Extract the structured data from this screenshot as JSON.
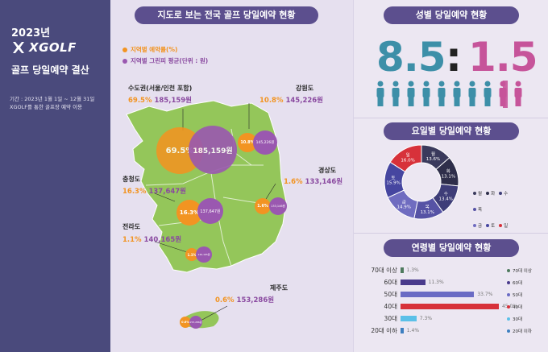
{
  "left": {
    "year": "2023년",
    "logo": "XGOLF",
    "subtitle": "골프 당일예약 결산",
    "note_line1": "기간 : 2023년 1월 1일 ~ 12월 31일",
    "note_line2": "XGOLF를 통한 골프장 예약 이용"
  },
  "map": {
    "title": "지도로 보는 전국 골프 당일예약 현황",
    "legend_rate": "지역별 예약률(%)",
    "legend_fee": "지역별 그린피 평균(단위 : 원)",
    "regions": [
      {
        "name": "수도권(서울/인천 포함)",
        "pct": "69.5%",
        "fee": "185,159원",
        "bubble_pct": "69.5%",
        "bubble_fee": "185,159원"
      },
      {
        "name": "강원도",
        "pct": "10.8%",
        "fee": "145,226원",
        "bubble_pct": "10.8%",
        "bubble_fee": "145,226원"
      },
      {
        "name": "충청도",
        "pct": "16.3%",
        "fee": "137,647원",
        "bubble_pct": "16.3%",
        "bubble_fee": "137,647원"
      },
      {
        "name": "경상도",
        "pct": "1.6%",
        "fee": "133,146원",
        "bubble_pct": "1.6%",
        "bubble_fee": "133,146원"
      },
      {
        "name": "전라도",
        "pct": "1.1%",
        "fee": "140,165원",
        "bubble_pct": "1.1%",
        "bubble_fee": "140,165원"
      },
      {
        "name": "제주도",
        "pct": "0.6%",
        "fee": "153,286원",
        "bubble_pct": "0.6%",
        "bubble_fee": "153,286원"
      }
    ]
  },
  "gender": {
    "title": "성별 당일예약 현황",
    "male": "8.5",
    "sep": ":",
    "female": "1.5",
    "male_color": "#3d8fa8",
    "female_color": "#c6549a"
  },
  "weekday": {
    "title": "요일별 당일예약 현황",
    "slices": [
      {
        "day": "월",
        "pct": "13.6%",
        "value": 13.6,
        "color": "#3a3a5c"
      },
      {
        "day": "화",
        "pct": "13.1%",
        "value": 13.1,
        "color": "#2e2e4a"
      },
      {
        "day": "수",
        "pct": "13.4%",
        "value": 13.4,
        "color": "#3e3d78"
      },
      {
        "day": "목",
        "pct": "13.1%",
        "value": 13.1,
        "color": "#5653a5"
      },
      {
        "day": "금",
        "pct": "14.9%",
        "value": 14.9,
        "color": "#6f6cc0"
      },
      {
        "day": "토",
        "pct": "15.9%",
        "value": 15.9,
        "color": "#4646a0"
      },
      {
        "day": "일",
        "pct": "16.0%",
        "value": 16.0,
        "color": "#d7313a"
      }
    ]
  },
  "age": {
    "title": "연령별 당일예약 현황",
    "rows": [
      {
        "label": "70대 이상",
        "value": 1.3,
        "text": "1.3%",
        "color": "#4e7a5e",
        "legend": "70대 이상"
      },
      {
        "label": "60대",
        "value": 11.3,
        "text": "11.3%",
        "color": "#4a3b8c",
        "legend": "60대"
      },
      {
        "label": "50대",
        "value": 33.7,
        "text": "33.7%",
        "color": "#6a6bc4",
        "legend": "50대"
      },
      {
        "label": "40대",
        "value": 45.0,
        "text": "45.0%",
        "color": "#d7313a",
        "legend": "40대"
      },
      {
        "label": "30대",
        "value": 7.3,
        "text": "7.3%",
        "color": "#5bc0e8",
        "legend": "30대"
      },
      {
        "label": "20대 이하",
        "value": 1.4,
        "text": "1.4%",
        "color": "#3d7fc0",
        "legend": "20대 이하"
      }
    ]
  }
}
